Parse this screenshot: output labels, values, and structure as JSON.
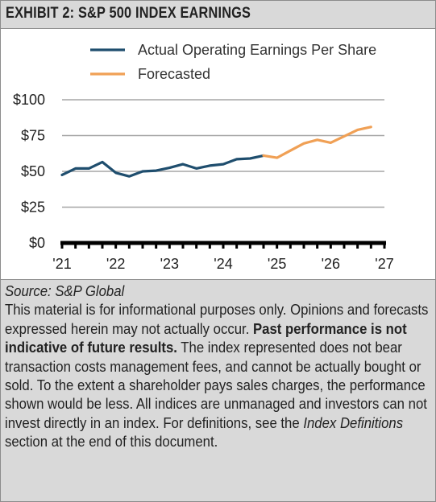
{
  "header": {
    "title": "EXHIBIT 2: S&P 500 INDEX EARNINGS"
  },
  "chart_data": {
    "type": "line",
    "title": "EXHIBIT 2: S&P 500 INDEX EARNINGS",
    "xlabel": "",
    "ylabel": "",
    "x_tick_labels": [
      "'21",
      "'22",
      "'23",
      "'24",
      "'25",
      "'26",
      "'27"
    ],
    "x_ticks": [
      2021,
      2022,
      2023,
      2024,
      2025,
      2026,
      2027
    ],
    "xlim": [
      2021,
      2027
    ],
    "y_tick_labels": [
      "$0",
      "$25",
      "$50",
      "$75",
      "$100"
    ],
    "y_ticks": [
      0,
      25,
      50,
      75,
      100
    ],
    "ylim": [
      0,
      100
    ],
    "grid": true,
    "legend_position": "top",
    "series": [
      {
        "name": "Actual Operating Earnings Per Share",
        "color": "#1f4e6e",
        "x": [
          2021.0,
          2021.25,
          2021.5,
          2021.75,
          2022.0,
          2022.25,
          2022.5,
          2022.75,
          2023.0,
          2023.25,
          2023.5,
          2023.75,
          2024.0,
          2024.25,
          2024.5,
          2024.75
        ],
        "y": [
          47.5,
          52.0,
          52.0,
          56.5,
          49.0,
          46.5,
          50.0,
          50.5,
          52.5,
          55.0,
          52.0,
          54.0,
          55.0,
          58.5,
          59.0,
          61.0
        ]
      },
      {
        "name": "Forecasted",
        "color": "#f0a055",
        "x": [
          2024.75,
          2025.0,
          2025.25,
          2025.5,
          2025.75,
          2026.0,
          2026.25,
          2026.5,
          2026.75
        ],
        "y": [
          61.0,
          59.5,
          64.5,
          69.5,
          72.0,
          70.0,
          74.5,
          79.0,
          81.0
        ]
      }
    ]
  },
  "footer": {
    "source": "Source: S&P Global",
    "disclaimer_1": "This material is for informational purposes only. Opinions and forecasts expressed herein may not actually occur. ",
    "disclaimer_bold": "Past performance is not indicative of future results.",
    "disclaimer_2": " The index represented does not bear transaction costs management fees, and cannot be actually bought or sold. To the extent a shareholder pays sales charges, the performance shown would be less. All indices are unmanaged and investors can not invest directly in an index. For definitions, see the ",
    "disclaimer_italic": "Index Definitions",
    "disclaimer_3": " section at the end of this document."
  }
}
